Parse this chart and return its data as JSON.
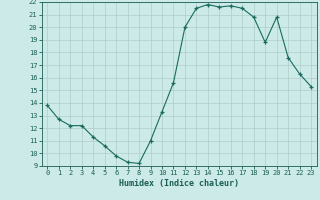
{
  "x": [
    0,
    1,
    2,
    3,
    4,
    5,
    6,
    7,
    8,
    9,
    10,
    11,
    12,
    13,
    14,
    15,
    16,
    17,
    18,
    19,
    20,
    21,
    22,
    23
  ],
  "y": [
    13.8,
    12.7,
    12.2,
    12.2,
    11.3,
    10.6,
    9.8,
    9.3,
    9.2,
    11.0,
    13.3,
    15.6,
    20.0,
    21.5,
    21.8,
    21.6,
    21.7,
    21.5,
    20.8,
    18.8,
    20.8,
    17.6,
    16.3,
    15.3
  ],
  "xlabel": "Humidex (Indice chaleur)",
  "xlim": [
    -0.5,
    23.5
  ],
  "ylim": [
    9,
    22
  ],
  "yticks": [
    9,
    10,
    11,
    12,
    13,
    14,
    15,
    16,
    17,
    18,
    19,
    20,
    21,
    22
  ],
  "xticks": [
    0,
    1,
    2,
    3,
    4,
    5,
    6,
    7,
    8,
    9,
    10,
    11,
    12,
    13,
    14,
    15,
    16,
    17,
    18,
    19,
    20,
    21,
    22,
    23
  ],
  "line_color": "#1a6b5f",
  "marker": "+",
  "bg_color": "#cceae7",
  "grid_color": "#b0ccc9",
  "text_color": "#1a5f55",
  "font_family": "monospace"
}
